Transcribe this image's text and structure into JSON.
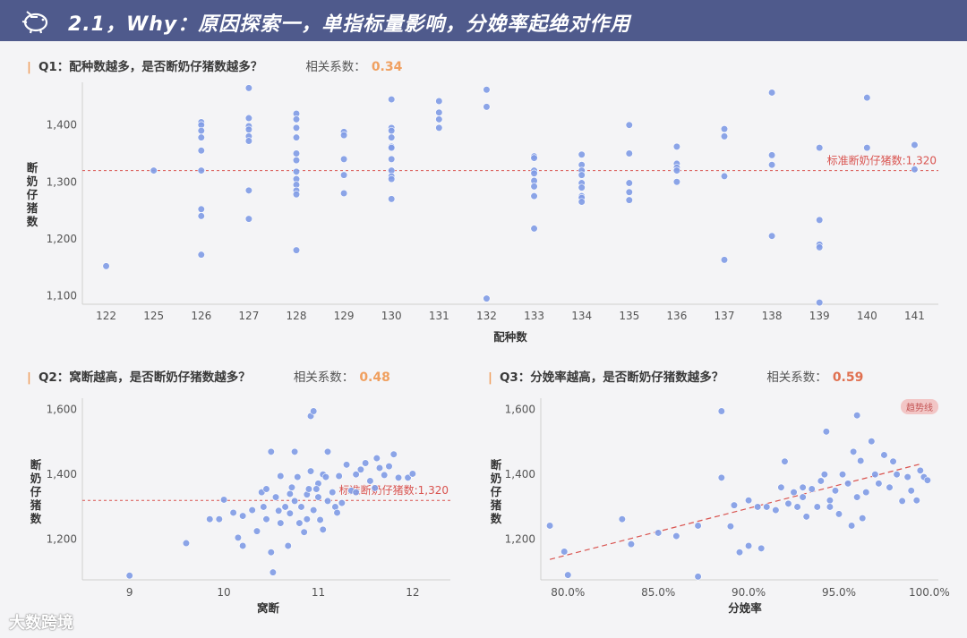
{
  "header": {
    "title": "2.1，Why：原因探索一，单指标量影响，分娩率起绝对作用",
    "icon": "piggy-bank-icon"
  },
  "colors": {
    "point": "#7f9be6",
    "ref": "#d9534f",
    "accent": "#f0a060",
    "header": "#4f5a8c"
  },
  "questions": {
    "q1": {
      "label": "Q1：配种数越多，是否断奶仔猪数越多？",
      "corr_label": "相关系数：",
      "corr_value": "0.34",
      "corr_color": "#f0a060"
    },
    "q2": {
      "label": "Q2：窝断越高，是否断奶仔猪数越多？",
      "corr_label": "相关系数：",
      "corr_value": "0.48",
      "corr_color": "#f0a060"
    },
    "q3": {
      "label": "Q3：分娩率越高，是否断奶仔猪数越多？",
      "corr_label": "相关系数：",
      "corr_value": "0.59",
      "corr_color": "#e07050"
    }
  },
  "trend_badge": "趋势线",
  "watermark": "大数跨境",
  "chart_data": [
    {
      "type": "scatter",
      "title": "",
      "xlabel": "配种数",
      "ylabel": "断奶仔猪数",
      "categories": [
        "122",
        "125",
        "126",
        "127",
        "128",
        "129",
        "130",
        "131",
        "132",
        "133",
        "134",
        "135",
        "136",
        "137",
        "138",
        "139",
        "140",
        "141"
      ],
      "yticks": [
        1100,
        1200,
        1300,
        1400
      ],
      "ylim": [
        1085,
        1475
      ],
      "reference_line": {
        "value": 1320,
        "label": "标准断奶仔猪数:1,320"
      },
      "points": [
        [
          0,
          1152
        ],
        [
          1,
          1320
        ],
        [
          2,
          1405
        ],
        [
          2,
          1400
        ],
        [
          2,
          1390
        ],
        [
          2,
          1378
        ],
        [
          2,
          1355
        ],
        [
          2,
          1320
        ],
        [
          2,
          1252
        ],
        [
          2,
          1240
        ],
        [
          2,
          1172
        ],
        [
          3,
          1465
        ],
        [
          3,
          1412
        ],
        [
          3,
          1398
        ],
        [
          3,
          1392
        ],
        [
          3,
          1380
        ],
        [
          3,
          1372
        ],
        [
          3,
          1285
        ],
        [
          3,
          1235
        ],
        [
          4,
          1420
        ],
        [
          4,
          1410
        ],
        [
          4,
          1395
        ],
        [
          4,
          1378
        ],
        [
          4,
          1350
        ],
        [
          4,
          1338
        ],
        [
          4,
          1318
        ],
        [
          4,
          1305
        ],
        [
          4,
          1295
        ],
        [
          4,
          1285
        ],
        [
          4,
          1278
        ],
        [
          4,
          1180
        ],
        [
          5,
          1388
        ],
        [
          5,
          1382
        ],
        [
          5,
          1340
        ],
        [
          5,
          1312
        ],
        [
          5,
          1280
        ],
        [
          6,
          1445
        ],
        [
          6,
          1395
        ],
        [
          6,
          1390
        ],
        [
          6,
          1378
        ],
        [
          6,
          1362
        ],
        [
          6,
          1360
        ],
        [
          6,
          1340
        ],
        [
          6,
          1320
        ],
        [
          6,
          1310
        ],
        [
          6,
          1305
        ],
        [
          6,
          1270
        ],
        [
          7,
          1442
        ],
        [
          7,
          1422
        ],
        [
          7,
          1410
        ],
        [
          7,
          1395
        ],
        [
          8,
          1462
        ],
        [
          8,
          1432
        ],
        [
          8,
          1095
        ],
        [
          9,
          1345
        ],
        [
          9,
          1342
        ],
        [
          9,
          1320
        ],
        [
          9,
          1315
        ],
        [
          9,
          1302
        ],
        [
          9,
          1292
        ],
        [
          9,
          1275
        ],
        [
          9,
          1218
        ],
        [
          10,
          1348
        ],
        [
          10,
          1330
        ],
        [
          10,
          1320
        ],
        [
          10,
          1312
        ],
        [
          10,
          1298
        ],
        [
          10,
          1290
        ],
        [
          10,
          1275
        ],
        [
          10,
          1272
        ],
        [
          10,
          1265
        ],
        [
          11,
          1400
        ],
        [
          11,
          1350
        ],
        [
          11,
          1298
        ],
        [
          11,
          1282
        ],
        [
          11,
          1268
        ],
        [
          12,
          1362
        ],
        [
          12,
          1332
        ],
        [
          12,
          1325
        ],
        [
          12,
          1320
        ],
        [
          12,
          1300
        ],
        [
          13,
          1393
        ],
        [
          13,
          1380
        ],
        [
          13,
          1310
        ],
        [
          13,
          1163
        ],
        [
          14,
          1457
        ],
        [
          14,
          1347
        ],
        [
          14,
          1330
        ],
        [
          14,
          1205
        ],
        [
          15,
          1360
        ],
        [
          15,
          1233
        ],
        [
          15,
          1190
        ],
        [
          15,
          1185
        ],
        [
          15,
          1088
        ],
        [
          16,
          1448
        ],
        [
          16,
          1360
        ],
        [
          17,
          1365
        ],
        [
          17,
          1322
        ]
      ]
    },
    {
      "type": "scatter",
      "title": "",
      "xlabel": "窝断",
      "ylabel": "断奶仔猪数",
      "xticks": [
        9,
        10,
        11,
        12
      ],
      "xlim": [
        8.5,
        12.4
      ],
      "yticks": [
        1200,
        1400,
        1600
      ],
      "ylim": [
        1075,
        1635
      ],
      "reference_line": {
        "value": 1320,
        "label": "标准断奶仔猪数:1,320"
      },
      "points": [
        [
          9.0,
          1088
        ],
        [
          9.6,
          1188
        ],
        [
          9.85,
          1262
        ],
        [
          9.95,
          1262
        ],
        [
          10.0,
          1322
        ],
        [
          10.1,
          1282
        ],
        [
          10.15,
          1205
        ],
        [
          10.2,
          1180
        ],
        [
          10.2,
          1272
        ],
        [
          10.3,
          1290
        ],
        [
          10.35,
          1225
        ],
        [
          10.4,
          1345
        ],
        [
          10.42,
          1300
        ],
        [
          10.45,
          1355
        ],
        [
          10.45,
          1262
        ],
        [
          10.5,
          1470
        ],
        [
          10.5,
          1160
        ],
        [
          10.52,
          1098
        ],
        [
          10.55,
          1330
        ],
        [
          10.6,
          1395
        ],
        [
          10.6,
          1250
        ],
        [
          10.65,
          1300
        ],
        [
          10.7,
          1340
        ],
        [
          10.7,
          1280
        ],
        [
          10.72,
          1360
        ],
        [
          10.75,
          1318
        ],
        [
          10.75,
          1470
        ],
        [
          10.8,
          1250
        ],
        [
          10.82,
          1300
        ],
        [
          10.85,
          1222
        ],
        [
          10.88,
          1338
        ],
        [
          10.9,
          1355
        ],
        [
          10.92,
          1580
        ],
        [
          10.92,
          1410
        ],
        [
          10.95,
          1595
        ],
        [
          10.95,
          1290
        ],
        [
          11.0,
          1372
        ],
        [
          11.0,
          1330
        ],
        [
          11.02,
          1260
        ],
        [
          11.05,
          1230
        ],
        [
          11.05,
          1400
        ],
        [
          11.1,
          1318
        ],
        [
          11.1,
          1470
        ],
        [
          11.15,
          1345
        ],
        [
          11.18,
          1300
        ],
        [
          11.2,
          1282
        ],
        [
          11.22,
          1395
        ],
        [
          11.3,
          1430
        ],
        [
          11.35,
          1350
        ],
        [
          11.4,
          1345
        ],
        [
          11.45,
          1415
        ],
        [
          11.5,
          1435
        ],
        [
          11.55,
          1380
        ],
        [
          11.6,
          1358
        ],
        [
          11.62,
          1450
        ],
        [
          11.65,
          1420
        ],
        [
          11.7,
          1398
        ],
        [
          11.75,
          1425
        ],
        [
          11.8,
          1462
        ],
        [
          11.85,
          1390
        ],
        [
          11.95,
          1390
        ],
        [
          12.0,
          1402
        ],
        [
          10.68,
          1180
        ],
        [
          10.78,
          1392
        ],
        [
          11.25,
          1312
        ],
        [
          10.58,
          1288
        ],
        [
          10.98,
          1355
        ],
        [
          11.08,
          1392
        ],
        [
          10.88,
          1262
        ],
        [
          11.4,
          1400
        ]
      ]
    },
    {
      "type": "scatter",
      "title": "",
      "xlabel": "分娩率",
      "ylabel": "断奶仔猪数",
      "xticks": [
        0.8,
        0.85,
        0.9,
        0.95,
        1.0
      ],
      "xtick_labels": [
        "80.0%",
        "85.0%",
        "90.0%",
        "95.0%",
        "100.0%"
      ],
      "xlim": [
        0.785,
        1.005
      ],
      "yticks": [
        1200,
        1400,
        1600
      ],
      "ylim": [
        1075,
        1635
      ],
      "trend_line": {
        "from": [
          0.79,
          1138
        ],
        "to": [
          0.995,
          1432
        ]
      },
      "points": [
        [
          0.79,
          1242
        ],
        [
          0.798,
          1162
        ],
        [
          0.8,
          1090
        ],
        [
          0.83,
          1262
        ],
        [
          0.835,
          1185
        ],
        [
          0.85,
          1220
        ],
        [
          0.86,
          1210
        ],
        [
          0.872,
          1242
        ],
        [
          0.872,
          1085
        ],
        [
          0.885,
          1595
        ],
        [
          0.885,
          1390
        ],
        [
          0.89,
          1240
        ],
        [
          0.892,
          1305
        ],
        [
          0.895,
          1160
        ],
        [
          0.9,
          1180
        ],
        [
          0.9,
          1320
        ],
        [
          0.905,
          1300
        ],
        [
          0.907,
          1172
        ],
        [
          0.91,
          1300
        ],
        [
          0.915,
          1290
        ],
        [
          0.918,
          1360
        ],
        [
          0.92,
          1440
        ],
        [
          0.922,
          1310
        ],
        [
          0.925,
          1345
        ],
        [
          0.927,
          1300
        ],
        [
          0.93,
          1330
        ],
        [
          0.932,
          1270
        ],
        [
          0.935,
          1355
        ],
        [
          0.938,
          1300
        ],
        [
          0.94,
          1380
        ],
        [
          0.942,
          1400
        ],
        [
          0.943,
          1532
        ],
        [
          0.945,
          1320
        ],
        [
          0.948,
          1350
        ],
        [
          0.95,
          1278
        ],
        [
          0.952,
          1400
        ],
        [
          0.955,
          1372
        ],
        [
          0.957,
          1242
        ],
        [
          0.958,
          1470
        ],
        [
          0.96,
          1582
        ],
        [
          0.962,
          1442
        ],
        [
          0.963,
          1265
        ],
        [
          0.965,
          1345
        ],
        [
          0.968,
          1502
        ],
        [
          0.97,
          1400
        ],
        [
          0.972,
          1372
        ],
        [
          0.975,
          1460
        ],
        [
          0.978,
          1360
        ],
        [
          0.98,
          1440
        ],
        [
          0.982,
          1400
        ],
        [
          0.985,
          1318
        ],
        [
          0.988,
          1392
        ],
        [
          0.99,
          1350
        ],
        [
          0.993,
          1320
        ],
        [
          0.995,
          1412
        ],
        [
          0.997,
          1392
        ],
        [
          0.999,
          1382
        ],
        [
          0.96,
          1330
        ],
        [
          0.945,
          1300
        ],
        [
          0.93,
          1360
        ]
      ]
    }
  ]
}
